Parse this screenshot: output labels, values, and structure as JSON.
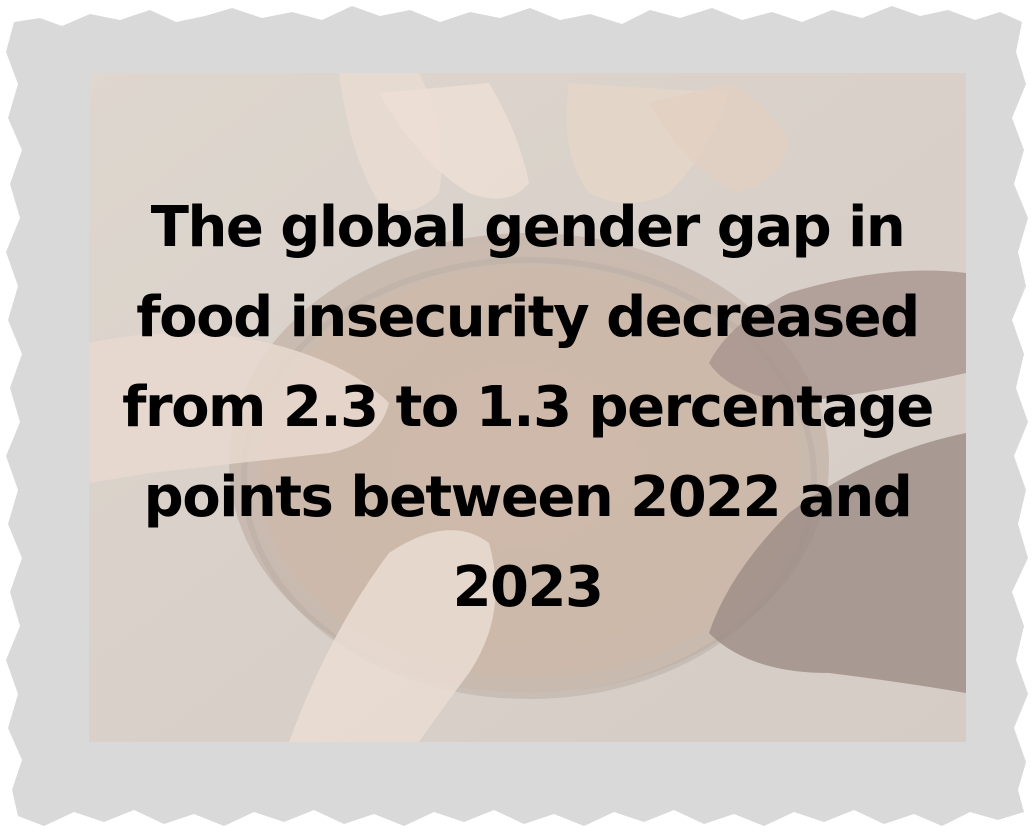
{
  "headline": "The global gender gap in food insecurity decreased from 2.3 to 1.3 percentage points between 2022 and 2023",
  "colors": {
    "frame": "#d9d9d9",
    "photo_wash": "#d8cfc7",
    "text": "#000000"
  },
  "image": {
    "subject": "hands holding an empty bowl",
    "icon": "shared-bowl-hands-photo"
  }
}
